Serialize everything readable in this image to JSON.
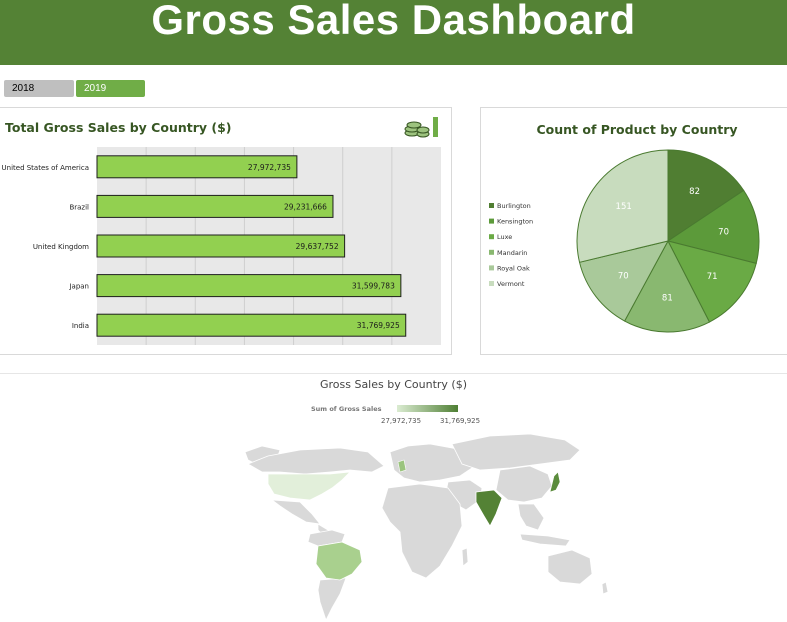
{
  "header": {
    "title": "Gross Sales Dashboard"
  },
  "year_tabs": [
    {
      "label": "2018",
      "selected": false
    },
    {
      "label": "2019",
      "selected": true
    }
  ],
  "colors": {
    "banner": "#548235",
    "bar_fill": "#92d050",
    "selected_tab": "#70ad47"
  },
  "chart_data": [
    {
      "type": "bar",
      "orientation": "horizontal",
      "title": "Total Gross Sales by Country ($)",
      "categories": [
        "United States of America",
        "Brazil",
        "United Kingdom",
        "Japan",
        "India"
      ],
      "values": [
        27972735,
        29231666,
        29637752,
        31599783,
        31769925
      ],
      "data_labels": [
        "27,972,735",
        "29,231,666",
        "29,637,752",
        "31,599,783",
        "31,769,925"
      ],
      "xlim": [
        21000000,
        33000000
      ],
      "grid": true,
      "icon": "coins-icon"
    },
    {
      "type": "pie",
      "title": "Count of Product by Country",
      "labels": [
        "Burlington",
        "Kensington",
        "Luxe",
        "Mandarin",
        "Royal Oak",
        "Vermont"
      ],
      "values": [
        82,
        70,
        71,
        81,
        70,
        151
      ],
      "colors": [
        "#507e32",
        "#5c9a3a",
        "#6aaa45",
        "#89b870",
        "#a9c99a",
        "#c8dcbe"
      ],
      "legend_position": "left"
    },
    {
      "type": "map",
      "title": "Gross Sales by Country ($)",
      "legend_title": "Sum of Gross Sales",
      "min_label": "27,972,735",
      "max_label": "31,769,925",
      "regions": [
        {
          "name": "United States of America",
          "value": 27972735
        },
        {
          "name": "Brazil",
          "value": 29231666
        },
        {
          "name": "United Kingdom",
          "value": 29637752
        },
        {
          "name": "Japan",
          "value": 31599783
        },
        {
          "name": "India",
          "value": 31769925
        }
      ]
    }
  ]
}
